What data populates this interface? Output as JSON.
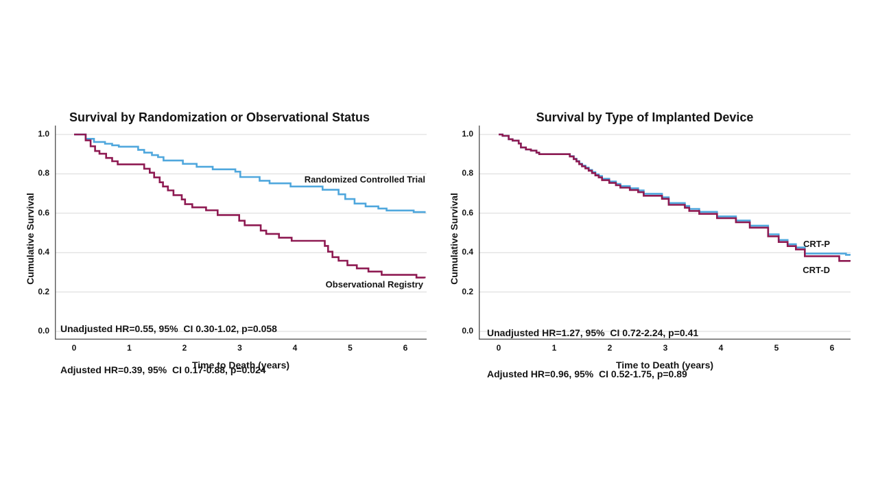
{
  "page": {
    "background": "#ffffff"
  },
  "colors": {
    "gridline": "#d8d8d8",
    "axis": "#595959",
    "text": "#141414"
  },
  "chart_data": [
    {
      "type": "line",
      "subtype": "kaplan-meier-step",
      "title": "Survival by Randomization or Observational Status",
      "xlabel": "Time to Death (years)",
      "ylabel": "Cumulative Survival",
      "xlim": [
        0,
        6.4
      ],
      "ylim": [
        0.0,
        1.0
      ],
      "x_ticks": [
        0,
        1,
        2,
        3,
        4,
        5,
        6
      ],
      "y_ticks": [
        1.0,
        0.8,
        0.6,
        0.4,
        0.2,
        0.0
      ],
      "grid": "horizontal-only",
      "legend": "inline-curve-labels",
      "annotations": [
        "Unadjusted HR=0.55, 95%  CI 0.30-1.02, p=0.058",
        "Adjusted HR=0.39, 95%  CI 0.17-0.88, p=0.024"
      ],
      "series": [
        {
          "name": "Randomized Controlled Trial",
          "color": "#4fa7dd",
          "points": [
            [
              0,
              1.0
            ],
            [
              0.21,
              0.978
            ],
            [
              0.36,
              0.962
            ],
            [
              0.56,
              0.953
            ],
            [
              0.69,
              0.945
            ],
            [
              0.81,
              0.938
            ],
            [
              1.16,
              0.922
            ],
            [
              1.27,
              0.908
            ],
            [
              1.41,
              0.895
            ],
            [
              1.52,
              0.885
            ],
            [
              1.62,
              0.868
            ],
            [
              1.97,
              0.851
            ],
            [
              2.22,
              0.836
            ],
            [
              2.51,
              0.823
            ],
            [
              2.92,
              0.811
            ],
            [
              3.01,
              0.784
            ],
            [
              3.36,
              0.765
            ],
            [
              3.54,
              0.752
            ],
            [
              3.92,
              0.736
            ],
            [
              4.5,
              0.719
            ],
            [
              4.79,
              0.696
            ],
            [
              4.91,
              0.672
            ],
            [
              5.08,
              0.649
            ],
            [
              5.28,
              0.635
            ],
            [
              5.51,
              0.624
            ],
            [
              5.66,
              0.614
            ],
            [
              6.15,
              0.606
            ],
            [
              6.35,
              0.601
            ]
          ]
        },
        {
          "name": "Observational Registry",
          "color": "#8e1a52",
          "points": [
            [
              0,
              1.0
            ],
            [
              0.21,
              0.97
            ],
            [
              0.3,
              0.94
            ],
            [
              0.38,
              0.916
            ],
            [
              0.46,
              0.902
            ],
            [
              0.58,
              0.881
            ],
            [
              0.69,
              0.864
            ],
            [
              0.79,
              0.848
            ],
            [
              1.27,
              0.826
            ],
            [
              1.37,
              0.806
            ],
            [
              1.45,
              0.782
            ],
            [
              1.55,
              0.757
            ],
            [
              1.61,
              0.736
            ],
            [
              1.7,
              0.716
            ],
            [
              1.8,
              0.692
            ],
            [
              1.95,
              0.67
            ],
            [
              2.01,
              0.646
            ],
            [
              2.14,
              0.63
            ],
            [
              2.39,
              0.615
            ],
            [
              2.6,
              0.591
            ],
            [
              2.99,
              0.562
            ],
            [
              3.09,
              0.539
            ],
            [
              3.38,
              0.512
            ],
            [
              3.48,
              0.495
            ],
            [
              3.71,
              0.476
            ],
            [
              3.94,
              0.46
            ],
            [
              4.54,
              0.434
            ],
            [
              4.6,
              0.405
            ],
            [
              4.68,
              0.377
            ],
            [
              4.79,
              0.359
            ],
            [
              4.95,
              0.336
            ],
            [
              5.12,
              0.32
            ],
            [
              5.33,
              0.304
            ],
            [
              5.57,
              0.287
            ],
            [
              6.2,
              0.273
            ],
            [
              6.35,
              0.27
            ]
          ]
        }
      ]
    },
    {
      "type": "line",
      "subtype": "kaplan-meier-step",
      "title": "Survival by Type of Implanted Device",
      "xlabel": "Time to Death (years)",
      "ylabel": "Cumulative Survival",
      "xlim": [
        0,
        6.4
      ],
      "ylim": [
        0.0,
        1.0
      ],
      "x_ticks": [
        0,
        1,
        2,
        3,
        4,
        5,
        6
      ],
      "y_ticks": [
        1.0,
        0.8,
        0.6,
        0.4,
        0.2,
        0.0
      ],
      "grid": "horizontal-only",
      "legend": "inline-curve-labels",
      "annotations": [
        "Unadjusted HR=1.27, 95%  CI 0.72-2.24, p=0.41",
        "Adjusted HR=0.96, 95%  CI 0.52-1.75, p=0.89"
      ],
      "series": [
        {
          "name": "CRT-P",
          "color": "#4fa7dd",
          "points": [
            [
              0,
              1.0
            ],
            [
              0.07,
              0.993
            ],
            [
              0.18,
              0.976
            ],
            [
              0.25,
              0.969
            ],
            [
              0.36,
              0.954
            ],
            [
              0.4,
              0.934
            ],
            [
              0.49,
              0.924
            ],
            [
              0.58,
              0.918
            ],
            [
              0.68,
              0.908
            ],
            [
              0.73,
              0.9
            ],
            [
              1.28,
              0.89
            ],
            [
              1.35,
              0.877
            ],
            [
              1.4,
              0.865
            ],
            [
              1.45,
              0.852
            ],
            [
              1.5,
              0.842
            ],
            [
              1.56,
              0.832
            ],
            [
              1.62,
              0.82
            ],
            [
              1.68,
              0.809
            ],
            [
              1.74,
              0.798
            ],
            [
              1.8,
              0.789
            ],
            [
              1.86,
              0.775
            ],
            [
              1.99,
              0.761
            ],
            [
              2.11,
              0.749
            ],
            [
              2.19,
              0.738
            ],
            [
              2.36,
              0.727
            ],
            [
              2.51,
              0.716
            ],
            [
              2.61,
              0.699
            ],
            [
              2.94,
              0.681
            ],
            [
              3.06,
              0.652
            ],
            [
              3.35,
              0.637
            ],
            [
              3.43,
              0.622
            ],
            [
              3.61,
              0.607
            ],
            [
              3.93,
              0.584
            ],
            [
              4.27,
              0.563
            ],
            [
              4.52,
              0.537
            ],
            [
              4.85,
              0.493
            ],
            [
              5.04,
              0.464
            ],
            [
              5.2,
              0.443
            ],
            [
              5.35,
              0.426
            ],
            [
              5.51,
              0.395
            ],
            [
              6.25,
              0.389
            ],
            [
              6.33,
              0.386
            ]
          ]
        },
        {
          "name": "CRT-D",
          "color": "#8e1a52",
          "points": [
            [
              0,
              1.0
            ],
            [
              0.07,
              0.993
            ],
            [
              0.18,
              0.976
            ],
            [
              0.25,
              0.969
            ],
            [
              0.36,
              0.954
            ],
            [
              0.4,
              0.934
            ],
            [
              0.49,
              0.924
            ],
            [
              0.58,
              0.918
            ],
            [
              0.68,
              0.908
            ],
            [
              0.73,
              0.9
            ],
            [
              1.28,
              0.888
            ],
            [
              1.35,
              0.875
            ],
            [
              1.4,
              0.863
            ],
            [
              1.45,
              0.849
            ],
            [
              1.5,
              0.838
            ],
            [
              1.56,
              0.828
            ],
            [
              1.62,
              0.816
            ],
            [
              1.68,
              0.804
            ],
            [
              1.74,
              0.792
            ],
            [
              1.8,
              0.782
            ],
            [
              1.86,
              0.768
            ],
            [
              1.99,
              0.754
            ],
            [
              2.11,
              0.742
            ],
            [
              2.19,
              0.73
            ],
            [
              2.36,
              0.718
            ],
            [
              2.51,
              0.707
            ],
            [
              2.61,
              0.689
            ],
            [
              2.94,
              0.673
            ],
            [
              3.06,
              0.643
            ],
            [
              3.35,
              0.628
            ],
            [
              3.43,
              0.612
            ],
            [
              3.61,
              0.597
            ],
            [
              3.93,
              0.575
            ],
            [
              4.27,
              0.554
            ],
            [
              4.52,
              0.527
            ],
            [
              4.85,
              0.483
            ],
            [
              5.04,
              0.454
            ],
            [
              5.2,
              0.433
            ],
            [
              5.35,
              0.416
            ],
            [
              5.51,
              0.382
            ],
            [
              6.13,
              0.358
            ],
            [
              6.33,
              0.355
            ]
          ]
        }
      ]
    }
  ]
}
